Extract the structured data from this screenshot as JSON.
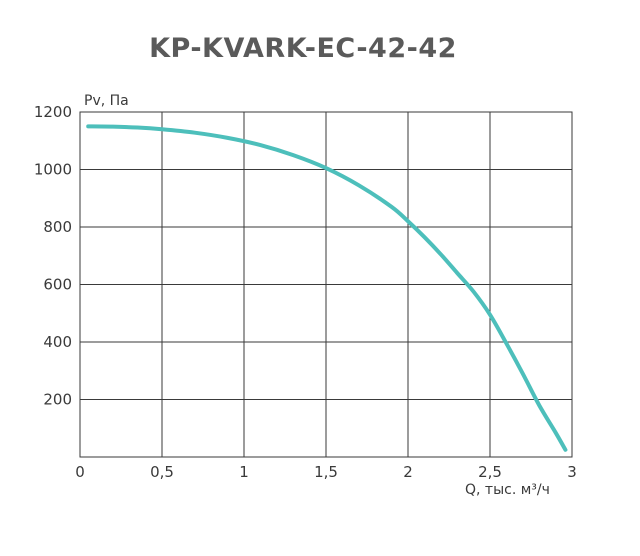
{
  "chart_data": {
    "type": "line",
    "title": "KP-KVARK-EC-42-42",
    "xlabel": "Q, тыс. м³/ч",
    "ylabel": "Pv, Па",
    "xlim": [
      0,
      3
    ],
    "ylim": [
      0,
      1200
    ],
    "x_ticks": [
      0,
      0.5,
      1,
      1.5,
      2,
      2.5,
      3
    ],
    "x_tick_labels": [
      "0",
      "0,5",
      "1",
      "1,5",
      "2",
      "2,5",
      "3"
    ],
    "y_ticks": [
      200,
      400,
      600,
      800,
      1000,
      1200
    ],
    "y_tick_labels": [
      "200",
      "400",
      "600",
      "800",
      "1000",
      "1200"
    ],
    "grid": true,
    "legend": "none",
    "series": [
      {
        "color": "#4dbfbb",
        "x": [
          0.05,
          0.2,
          0.35,
          0.5,
          0.7,
          0.9,
          1.1,
          1.3,
          1.5,
          1.7,
          1.9,
          2.0,
          2.1,
          2.2,
          2.3,
          2.4,
          2.5,
          2.6,
          2.7,
          2.8,
          2.9,
          2.96
        ],
        "y": [
          1150,
          1149,
          1146,
          1140,
          1128,
          1110,
          1085,
          1050,
          1005,
          945,
          870,
          820,
          765,
          705,
          640,
          575,
          495,
          395,
          290,
          180,
          85,
          25
        ]
      }
    ]
  }
}
